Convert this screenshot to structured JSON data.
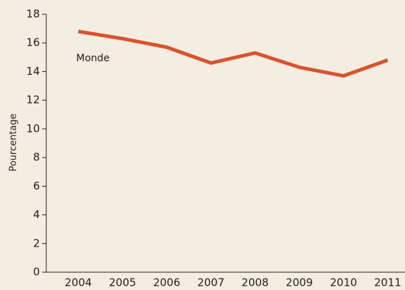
{
  "chart_data": {
    "type": "line",
    "y_label": "Pourcentage",
    "annotation": "Monde",
    "categories": [
      "2004",
      "2005",
      "2006",
      "2007",
      "2008",
      "2009",
      "2010",
      "2011"
    ],
    "series": [
      {
        "name": "Monde",
        "color": "#d9532e",
        "values": [
          16.8,
          16.3,
          15.7,
          14.6,
          15.3,
          14.3,
          13.7,
          14.8
        ]
      }
    ],
    "ylim": [
      0,
      18
    ],
    "yticks": [
      0,
      2,
      4,
      6,
      8,
      10,
      12,
      14,
      16,
      18
    ],
    "grid": false
  }
}
